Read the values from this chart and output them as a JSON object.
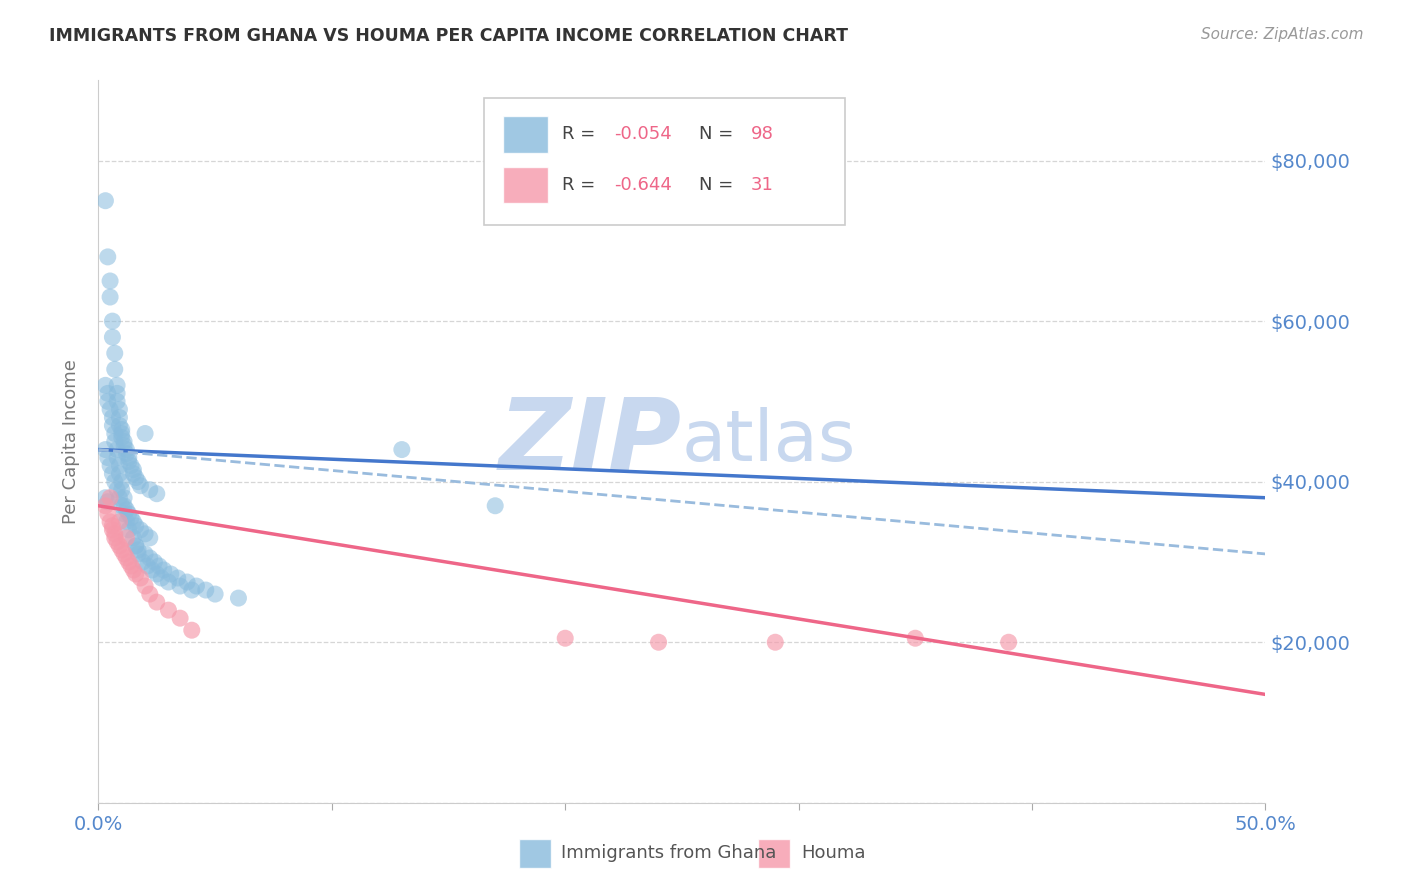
{
  "title": "IMMIGRANTS FROM GHANA VS HOUMA PER CAPITA INCOME CORRELATION CHART",
  "source": "Source: ZipAtlas.com",
  "ylabel": "Per Capita Income",
  "xlim": [
    0.0,
    0.5
  ],
  "ylim": [
    0,
    90000
  ],
  "yticks": [
    0,
    20000,
    40000,
    60000,
    80000
  ],
  "ytick_labels": [
    "",
    "$20,000",
    "$40,000",
    "$60,000",
    "$80,000"
  ],
  "xticks": [
    0.0,
    0.1,
    0.2,
    0.3,
    0.4,
    0.5
  ],
  "xtick_labels": [
    "0.0%",
    "",
    "",
    "",
    "",
    "50.0%"
  ],
  "blue_scatter_x": [
    0.003,
    0.004,
    0.005,
    0.005,
    0.006,
    0.006,
    0.007,
    0.007,
    0.008,
    0.008,
    0.008,
    0.009,
    0.009,
    0.009,
    0.01,
    0.01,
    0.01,
    0.011,
    0.011,
    0.012,
    0.012,
    0.013,
    0.013,
    0.014,
    0.015,
    0.015,
    0.016,
    0.017,
    0.018,
    0.02,
    0.022,
    0.025,
    0.003,
    0.004,
    0.004,
    0.005,
    0.006,
    0.006,
    0.007,
    0.007,
    0.008,
    0.008,
    0.009,
    0.009,
    0.01,
    0.01,
    0.011,
    0.011,
    0.012,
    0.013,
    0.014,
    0.015,
    0.016,
    0.018,
    0.02,
    0.022,
    0.003,
    0.004,
    0.005,
    0.006,
    0.007,
    0.008,
    0.009,
    0.01,
    0.011,
    0.012,
    0.013,
    0.015,
    0.016,
    0.017,
    0.019,
    0.021,
    0.023,
    0.025,
    0.027,
    0.03,
    0.035,
    0.04,
    0.016,
    0.017,
    0.02,
    0.022,
    0.024,
    0.026,
    0.028,
    0.031,
    0.034,
    0.038,
    0.042,
    0.046,
    0.05,
    0.06,
    0.13,
    0.17,
    0.003,
    0.004
  ],
  "blue_scatter_y": [
    75000,
    68000,
    65000,
    63000,
    60000,
    58000,
    56000,
    54000,
    52000,
    51000,
    50000,
    49000,
    48000,
    47000,
    46500,
    46000,
    45500,
    45000,
    44500,
    44000,
    43500,
    43000,
    42500,
    42000,
    41500,
    41000,
    40500,
    40000,
    39500,
    46000,
    39000,
    38500,
    52000,
    51000,
    50000,
    49000,
    48000,
    47000,
    46000,
    45000,
    44000,
    43000,
    42000,
    41000,
    40000,
    39000,
    38000,
    37000,
    36500,
    36000,
    35500,
    35000,
    34500,
    34000,
    33500,
    33000,
    44000,
    43000,
    42000,
    41000,
    40000,
    39000,
    38000,
    37000,
    36000,
    35000,
    34000,
    33000,
    32000,
    31000,
    30000,
    29500,
    29000,
    28500,
    28000,
    27500,
    27000,
    26500,
    32000,
    31500,
    31000,
    30500,
    30000,
    29500,
    29000,
    28500,
    28000,
    27500,
    27000,
    26500,
    26000,
    25500,
    44000,
    37000,
    38000,
    37500
  ],
  "pink_scatter_x": [
    0.003,
    0.004,
    0.005,
    0.006,
    0.006,
    0.007,
    0.007,
    0.008,
    0.009,
    0.01,
    0.011,
    0.012,
    0.013,
    0.014,
    0.015,
    0.016,
    0.018,
    0.02,
    0.022,
    0.025,
    0.03,
    0.035,
    0.04,
    0.2,
    0.24,
    0.29,
    0.35,
    0.39,
    0.005,
    0.009,
    0.012
  ],
  "pink_scatter_y": [
    37000,
    36000,
    35000,
    34500,
    34000,
    33500,
    33000,
    32500,
    32000,
    31500,
    31000,
    30500,
    30000,
    29500,
    29000,
    28500,
    28000,
    27000,
    26000,
    25000,
    24000,
    23000,
    21500,
    20500,
    20000,
    20000,
    20500,
    20000,
    38000,
    35000,
    33000
  ],
  "blue_line_x": [
    0.0,
    0.5
  ],
  "blue_line_y": [
    44000,
    38000
  ],
  "blue_dashed_line_x": [
    0.0,
    0.5
  ],
  "blue_dashed_line_y": [
    44000,
    31000
  ],
  "pink_line_x": [
    0.0,
    0.5
  ],
  "pink_line_y": [
    37000,
    13500
  ],
  "scatter_color_blue": "#88bbdd",
  "scatter_color_pink": "#f599aa",
  "line_color_blue": "#4477cc",
  "line_color_blue_dashed": "#99bbdd",
  "line_color_pink": "#ee6688",
  "legend_value_color": "#ee6688",
  "watermark_zip": "ZIP",
  "watermark_atlas": "atlas",
  "watermark_color": "#c8d8ef",
  "background_color": "#ffffff",
  "grid_color": "#cccccc",
  "title_color": "#333333",
  "axis_color": "#5588cc",
  "ylabel_color": "#777777"
}
